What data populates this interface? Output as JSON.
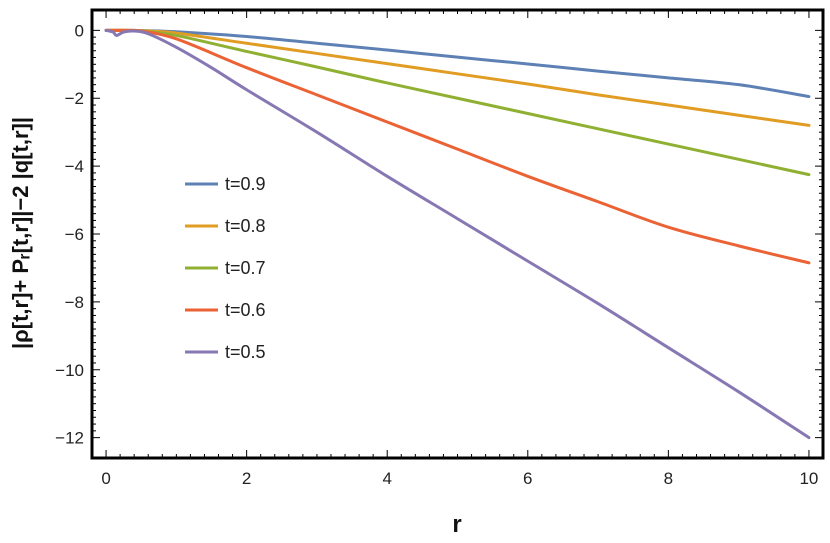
{
  "chart_data": {
    "type": "line",
    "xlabel": "r",
    "ylabel": "|ρ[t,r]+ Pᵣ[t,r]|−2 |q[t,r]|",
    "xlim": [
      -0.2,
      10.2
    ],
    "ylim": [
      -12.6,
      0.6
    ],
    "xticks": [
      0,
      2,
      4,
      6,
      8,
      10
    ],
    "xtick_labels": [
      "0",
      "2",
      "4",
      "6",
      "8",
      "10"
    ],
    "yticks": [
      0,
      -2,
      -4,
      -6,
      -8,
      -10,
      -12
    ],
    "ytick_labels": [
      "0",
      "−2",
      "−4",
      "−6",
      "−8",
      "−10",
      "−12"
    ],
    "grid": false,
    "legend_position": "left-center",
    "series": [
      {
        "name": "t=0.9",
        "color": "#5E81B5",
        "x": [
          0,
          0.3,
          0.6,
          1,
          2,
          3,
          4,
          5,
          6,
          7,
          8,
          9,
          10
        ],
        "y": [
          0,
          0,
          -0.01,
          -0.04,
          -0.18,
          -0.38,
          -0.58,
          -0.79,
          -0.99,
          -1.2,
          -1.4,
          -1.6,
          -1.95
        ]
      },
      {
        "name": "t=0.8",
        "color": "#E19C24",
        "x": [
          0,
          0.3,
          0.6,
          1,
          2,
          3,
          4,
          5,
          6,
          7,
          8,
          9,
          10
        ],
        "y": [
          0,
          0,
          -0.02,
          -0.08,
          -0.38,
          -0.68,
          -0.98,
          -1.28,
          -1.58,
          -1.9,
          -2.2,
          -2.5,
          -2.8
        ]
      },
      {
        "name": "t=0.7",
        "color": "#8FB032",
        "x": [
          0,
          0.3,
          0.6,
          1,
          2,
          3,
          4,
          5,
          6,
          7,
          8,
          9,
          10
        ],
        "y": [
          0,
          0,
          -0.04,
          -0.15,
          -0.62,
          -1.08,
          -1.55,
          -2.0,
          -2.45,
          -2.9,
          -3.35,
          -3.8,
          -4.25
        ]
      },
      {
        "name": "t=0.6",
        "color": "#EB6235",
        "x": [
          0,
          0.3,
          0.5,
          1,
          2,
          3,
          4,
          5,
          6,
          7,
          8,
          9,
          10
        ],
        "y": [
          0,
          0,
          -0.02,
          -0.25,
          -1.1,
          -1.9,
          -2.7,
          -3.5,
          -4.3,
          -5.05,
          -5.8,
          -6.35,
          -6.85
        ]
      },
      {
        "name": "t=0.5",
        "color": "#8778B3",
        "x": [
          0,
          0.1,
          0.15,
          0.25,
          0.4,
          0.6,
          1,
          1.5,
          2,
          3,
          4,
          5,
          6,
          7,
          8,
          9,
          10
        ],
        "y": [
          0,
          -0.05,
          -0.15,
          -0.05,
          -0.02,
          -0.1,
          -0.5,
          -1.1,
          -1.75,
          -3.0,
          -4.3,
          -5.55,
          -6.8,
          -8.05,
          -9.35,
          -10.65,
          -12.0
        ]
      }
    ]
  }
}
